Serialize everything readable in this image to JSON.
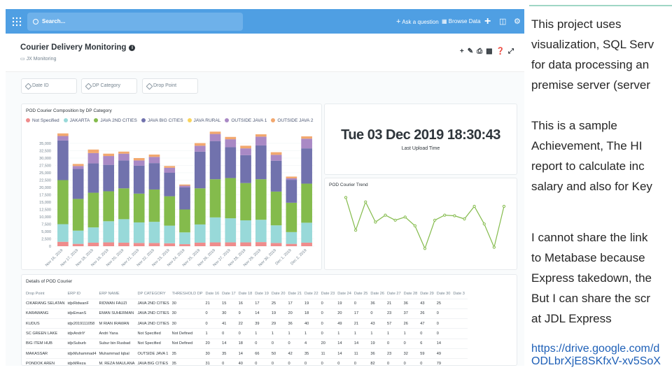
{
  "topbar": {
    "search_placeholder": "Search...",
    "ask": "Ask a question",
    "browse": "Browse Data"
  },
  "dashboard": {
    "title": "Courier Delivery Monitoring",
    "collection": "JX Monitoring",
    "filters": [
      "Date ID",
      "DP Category",
      "Drop Point"
    ]
  },
  "chart_data": [
    {
      "type": "bar",
      "stacked": true,
      "title": "POD Courier Composition by DP Category",
      "legend": [
        "Not Specified",
        "JAKARTA",
        "JAVA 2ND CITIES",
        "JAVA BIG CITIES",
        "JAVA RURAL",
        "OUTSIDE JAVA 1",
        "OUTSIDE JAVA 2"
      ],
      "colors": [
        "#ef8c8c",
        "#98d9d9",
        "#84bb4c",
        "#7172ad",
        "#f9d45c",
        "#a989c5",
        "#f2a86f"
      ],
      "ylim": [
        0,
        40000
      ],
      "yticks": [
        "0",
        "2,500",
        "5,000",
        "7,500",
        "10,000",
        "12,500",
        "15,000",
        "17,500",
        "20,000",
        "22,500",
        "25,000",
        "27,500",
        "30,000",
        "32,500",
        "35,000"
      ],
      "categories": [
        "Nov 16, 2019",
        "Nov 17, 2019",
        "Nov 18, 2019",
        "Nov 19, 2019",
        "Nov 20, 2019",
        "Nov 21, 2019",
        "Nov 22, 2019",
        "Nov 23, 2019",
        "Nov 24, 2019",
        "Nov 25, 2019",
        "Nov 26, 2019",
        "Nov 27, 2019",
        "Nov 28, 2019",
        "Nov 29, 2019",
        "Nov 30, 2019",
        "Dec 1, 2019",
        "Dec 2, 2019"
      ],
      "xticks": [
        "Nov 16, 2019",
        "Nov 17, 2019",
        "Nov 18, 2019",
        "Nov 19, 2019",
        "Nov 20, 2019",
        "Nov 21, 2019",
        "Nov 22, 2019",
        "Nov 23, 2019",
        "Nov 24, 2019",
        "Nov 25, 2019",
        "Nov 26, 2019",
        "Nov 27, 2019",
        "Nov 28, 2019",
        "Nov 29, 2019",
        "Nov 30, 2019",
        "Dec 1, 2019",
        "Dec 2, 2019"
      ],
      "series": [
        {
          "name": "Not Specified",
          "values": [
            1500,
            800,
            1200,
            1300,
            1200,
            1100,
            1100,
            1000,
            700,
            1200,
            1300,
            1300,
            1300,
            1400,
            1100,
            800,
            1200
          ]
        },
        {
          "name": "JAKARTA",
          "values": [
            6000,
            4500,
            5200,
            7200,
            8000,
            7000,
            7200,
            6000,
            4000,
            6200,
            8500,
            8200,
            7500,
            7600,
            6000,
            4000,
            6800
          ]
        },
        {
          "name": "JAVA 2ND CITIES",
          "values": [
            15000,
            10800,
            11800,
            10200,
            10500,
            9800,
            11000,
            10000,
            7800,
            12300,
            13000,
            13700,
            12700,
            13800,
            11500,
            10000,
            13300
          ]
        },
        {
          "name": "JAVA BIG CITIES",
          "values": [
            13500,
            10200,
            10000,
            9000,
            9500,
            9500,
            9000,
            8000,
            7500,
            12500,
            13000,
            10500,
            9500,
            11500,
            10500,
            7800,
            12000
          ]
        },
        {
          "name": "JAVA RURAL",
          "values": [
            0,
            0,
            0,
            0,
            0,
            0,
            0,
            0,
            0,
            0,
            0,
            0,
            0,
            0,
            0,
            0,
            0
          ]
        },
        {
          "name": "OUTSIDE JAVA 1",
          "values": [
            1500,
            1000,
            3500,
            3000,
            2300,
            1800,
            2100,
            1700,
            600,
            2000,
            2400,
            2700,
            2300,
            3000,
            2000,
            500,
            3300
          ]
        },
        {
          "name": "OUTSIDE JAVA 2",
          "values": [
            900,
            700,
            1200,
            800,
            700,
            800,
            800,
            600,
            400,
            900,
            800,
            800,
            900,
            800,
            900,
            600,
            800
          ]
        }
      ]
    },
    {
      "type": "line",
      "title": "POD Courier Trend",
      "values": [
        94,
        42,
        87,
        55,
        66,
        58,
        63,
        49,
        13,
        58,
        66,
        65,
        60,
        80,
        52,
        15,
        80
      ],
      "color": "#84bb4c"
    }
  ],
  "upload": {
    "value": "Tue 03 Dec 2019 18:30:43",
    "label": "Last Upload Time"
  },
  "table": {
    "title": "Details of POD Courier",
    "headers": [
      "Drop Point",
      "ERP ID",
      "ERP NAME",
      "DP CATEGORY",
      "THRESHOLD DP",
      "Date 16",
      "Date 17",
      "Date 18",
      "Date 19",
      "Date 20",
      "Date 21",
      "Date 22",
      "Date 23",
      "Date 24",
      "Date 25",
      "Date 26",
      "Date 27",
      "Date 28",
      "Date 29",
      "Date 30",
      "Date 3"
    ],
    "rows": [
      [
        "CIKARANG SELATAN",
        "idjxRidwanF",
        "RIDWAN FAUZI",
        "JAVA 2ND CITIES",
        "30",
        "21",
        "15",
        "16",
        "17",
        "25",
        "17",
        "19",
        "0",
        "19",
        "0",
        "36",
        "21",
        "36",
        "43",
        "25",
        ""
      ],
      [
        "KARAWANG",
        "idjxEmanS",
        "EMAN SUHERMAN",
        "JAVA 2ND CITIES",
        "30",
        "0",
        "30",
        "9",
        "14",
        "19",
        "20",
        "18",
        "0",
        "20",
        "17",
        "0",
        "23",
        "37",
        "26",
        "0",
        ""
      ],
      [
        "KUDUS",
        "idjx2019111058",
        "M RIAN IRAWAN",
        "JAVA 2ND CITIES",
        "30",
        "0",
        "41",
        "22",
        "39",
        "29",
        "36",
        "40",
        "0",
        "49",
        "21",
        "43",
        "57",
        "26",
        "47",
        "0",
        ""
      ],
      [
        "SC GREEN LAKE",
        "idjxAndriY",
        "Andri Yana",
        "Not Specified",
        "Not Defined",
        "1",
        "0",
        "0",
        "1",
        "1",
        "1",
        "1",
        "0",
        "1",
        "1",
        "1",
        "1",
        "1",
        "0",
        "0",
        ""
      ],
      [
        "BIG ITEM HUB",
        "idjxSuburb",
        "Subur bin Rusbad",
        "Not Specified",
        "Not Defined",
        "20",
        "14",
        "18",
        "0",
        "0",
        "0",
        "4",
        "20",
        "14",
        "14",
        "19",
        "0",
        "0",
        "6",
        "14",
        ""
      ],
      [
        "MAKASSAR",
        "idjxMuhammad4",
        "Muhammad Iqbal",
        "OUTSIDE JAVA 1",
        "35",
        "30",
        "35",
        "14",
        "66",
        "50",
        "42",
        "35",
        "11",
        "14",
        "11",
        "36",
        "23",
        "32",
        "59",
        "49",
        ""
      ],
      [
        "PONDOK AREN",
        "idjxMReza",
        "M. REZA MAULANA",
        "JAVA BIG CITIES",
        "35",
        "31",
        "0",
        "40",
        "0",
        "0",
        "0",
        "0",
        "0",
        "0",
        "0",
        "82",
        "0",
        "0",
        "0",
        "79",
        ""
      ]
    ]
  },
  "slide": {
    "p1": [
      "This    project    uses",
      "visualization, SQL Serv",
      "for data processing an",
      "premise server (server"
    ],
    "p2": [
      "This   is   a   sample",
      "Achievement,  The  HI",
      "report  to  calculate  inc",
      "salary and also for Key"
    ],
    "p3": [
      "I cannot share the link",
      "to  Metabase  because",
      "Express takedown, the",
      "But I can share the scr",
      "at JDL Express"
    ],
    "link": [
      "https://drive.google.com/d",
      "ODLbrXjE8SKfxV-xv5SoX"
    ]
  }
}
